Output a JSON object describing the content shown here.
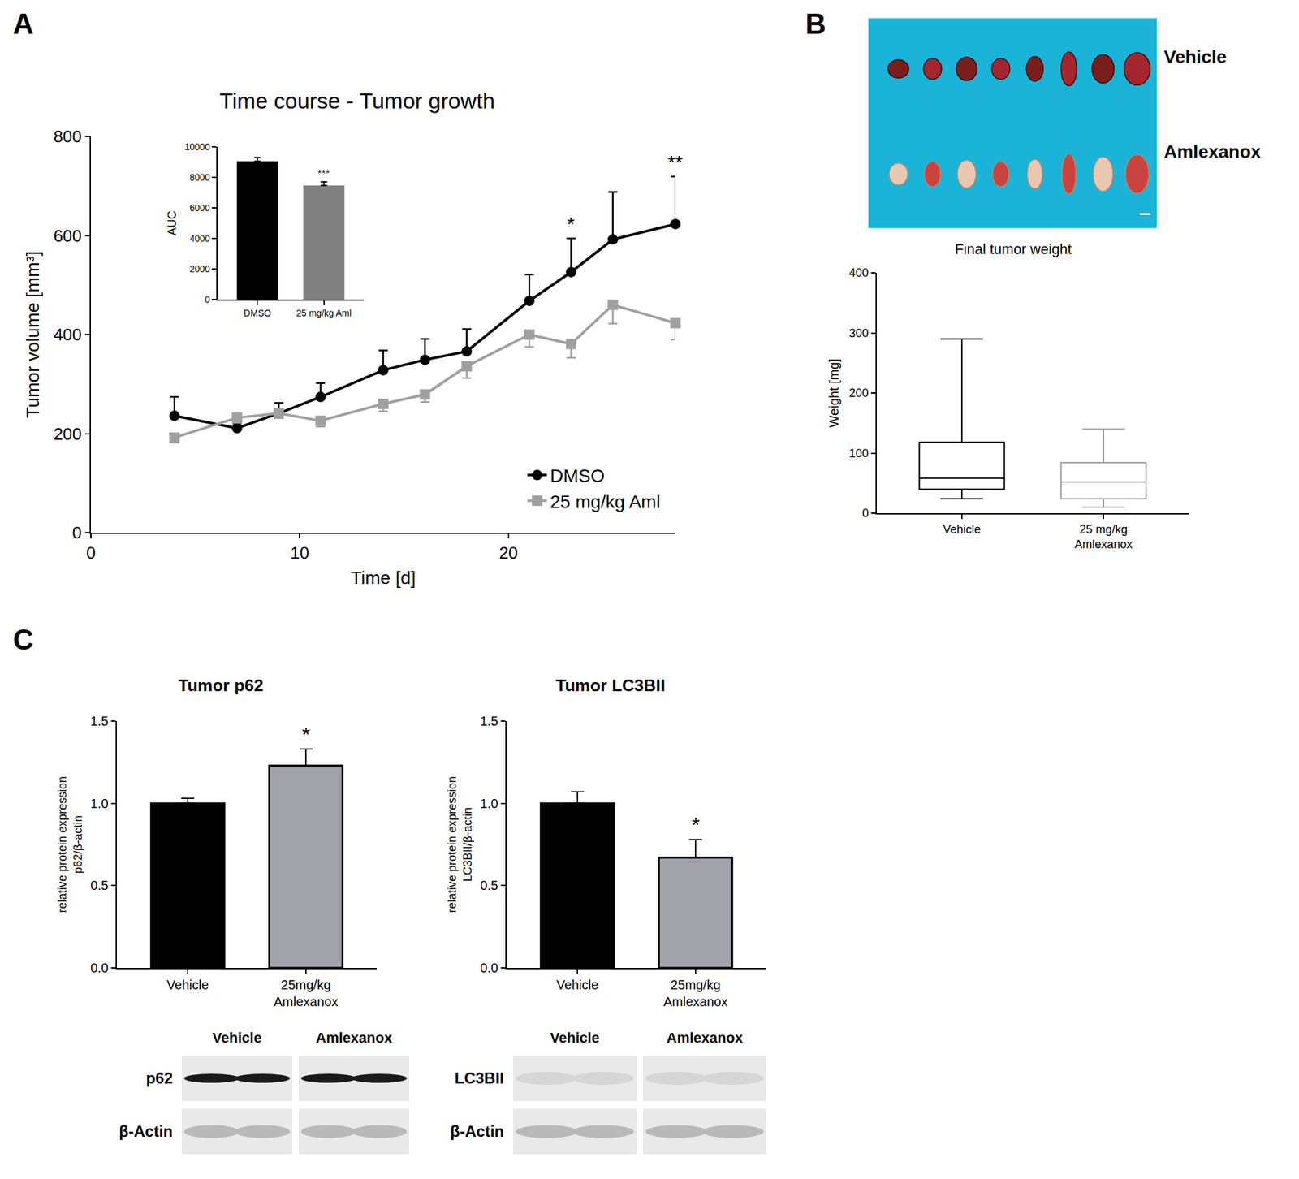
{
  "panel_letters": [
    "A",
    "B",
    "C"
  ],
  "chart_data": [
    {
      "type": "line",
      "title": "Time course - Tumor growth",
      "x_label": "Time [d]",
      "y_label": "Tumor volume [mm³]",
      "xlim": [
        0,
        28
      ],
      "xticks": [
        0,
        10,
        20
      ],
      "ylim": [
        0,
        800
      ],
      "yticks": [
        0,
        200,
        400,
        600,
        800
      ],
      "legend": "bottom right",
      "series": [
        {
          "name": "DMSO",
          "color": "#000000",
          "marker": "circle",
          "x": [
            4,
            7,
            9,
            11,
            14,
            16,
            18,
            21,
            23,
            25,
            28
          ],
          "values": [
            236,
            211,
            241,
            274,
            328,
            349,
            366,
            468,
            526,
            592,
            623
          ],
          "error_plus": [
            38,
            10,
            21,
            28,
            40,
            42,
            45,
            53,
            68,
            96,
            96
          ],
          "error_minus": [
            0,
            0,
            0,
            0,
            0,
            0,
            0,
            0,
            0,
            0,
            0
          ]
        },
        {
          "name": "25 mg/kg Aml",
          "color": "#a0a0a0",
          "marker": "square",
          "x": [
            4,
            7,
            9,
            11,
            14,
            16,
            18,
            21,
            23,
            25,
            28
          ],
          "values": [
            192,
            232,
            241,
            226,
            260,
            279,
            336,
            400,
            381,
            460,
            423
          ],
          "error_plus": [
            0,
            0,
            0,
            0,
            0,
            0,
            0,
            0,
            0,
            0,
            0
          ],
          "error_minus": [
            10,
            10,
            10,
            12,
            15,
            15,
            24,
            25,
            28,
            38,
            33
          ]
        }
      ],
      "annotations": [
        {
          "x": 28,
          "text": "**"
        },
        {
          "x": 23,
          "text": "*"
        }
      ]
    },
    {
      "type": "bar",
      "y_label": "AUC",
      "categories": [
        "DMSO",
        "25 mg/kg Aml"
      ],
      "values": [
        9050,
        7470
      ],
      "errors": [
        250,
        230
      ],
      "colors": [
        "#000000",
        "#808080"
      ],
      "ylim": [
        0,
        10000
      ],
      "yticks": [
        0,
        2000,
        4000,
        6000,
        8000,
        10000
      ],
      "annotations": [
        {
          "category": "25 mg/kg Aml",
          "text": "***"
        }
      ]
    },
    {
      "type": "box",
      "title": "Final tumor weight",
      "y_label": "Weight [mg]",
      "categories": [
        "Vehicle",
        "25 mg/kg Amlexanox"
      ],
      "boxes": [
        {
          "min": 24,
          "q1": 40,
          "median": 58,
          "q3": 118,
          "max": 290,
          "color": "#000000"
        },
        {
          "min": 10,
          "q1": 24,
          "median": 52,
          "q3": 84,
          "max": 140,
          "color": "#9a9a9a"
        }
      ],
      "ylim": [
        0,
        400
      ],
      "yticks": [
        0,
        100,
        200,
        300,
        400
      ]
    },
    {
      "type": "bar",
      "title": "Tumor p62",
      "y_label": "relative protein expression p62/β-actin",
      "categories": [
        "Vehicle",
        "25mg/kg Amlexanox"
      ],
      "values": [
        1.0,
        1.23
      ],
      "errors": [
        0.03,
        0.1
      ],
      "colors": [
        "#000000",
        "#a2a2aa"
      ],
      "ylim": [
        0,
        1.5
      ],
      "yticks": [
        {
          "value": 0,
          "label": "0.0"
        },
        {
          "value": 0.5,
          "label": "0.5"
        },
        {
          "value": 1,
          "label": "1.0"
        },
        {
          "value": 1.5,
          "label": "1.5"
        }
      ],
      "annotations": [
        {
          "category": "25mg/kg Amlexanox",
          "text": "*"
        }
      ]
    },
    {
      "type": "bar",
      "title": "Tumor LC3BII",
      "y_label": "relative protein expression LC3BII/β-actin",
      "categories": [
        "Vehicle",
        "25mg/kg Amlexanox"
      ],
      "values": [
        1.0,
        0.67
      ],
      "errors": [
        0.07,
        0.11
      ],
      "colors": [
        "#000000",
        "#a2a2aa"
      ],
      "ylim": [
        0,
        1.5
      ],
      "yticks": [
        {
          "value": 0,
          "label": "0.0"
        },
        {
          "value": 0.5,
          "label": "0.5"
        },
        {
          "value": 1,
          "label": "1.0"
        },
        {
          "value": 1.5,
          "label": "1.5"
        }
      ],
      "annotations": [
        {
          "category": "25mg/kg Amlexanox",
          "text": "*"
        }
      ]
    }
  ],
  "photo": {
    "rows": [
      {
        "label": "Vehicle",
        "count": 8
      },
      {
        "label": "Amlexanox",
        "count": 8
      }
    ]
  },
  "blots": [
    {
      "groups": [
        "Vehicle",
        "Amlexanox"
      ],
      "rows": [
        "p62",
        "β-Actin"
      ]
    },
    {
      "groups": [
        "Vehicle",
        "Amlexanox"
      ],
      "rows": [
        "LC3BII",
        "β-Actin"
      ]
    }
  ]
}
